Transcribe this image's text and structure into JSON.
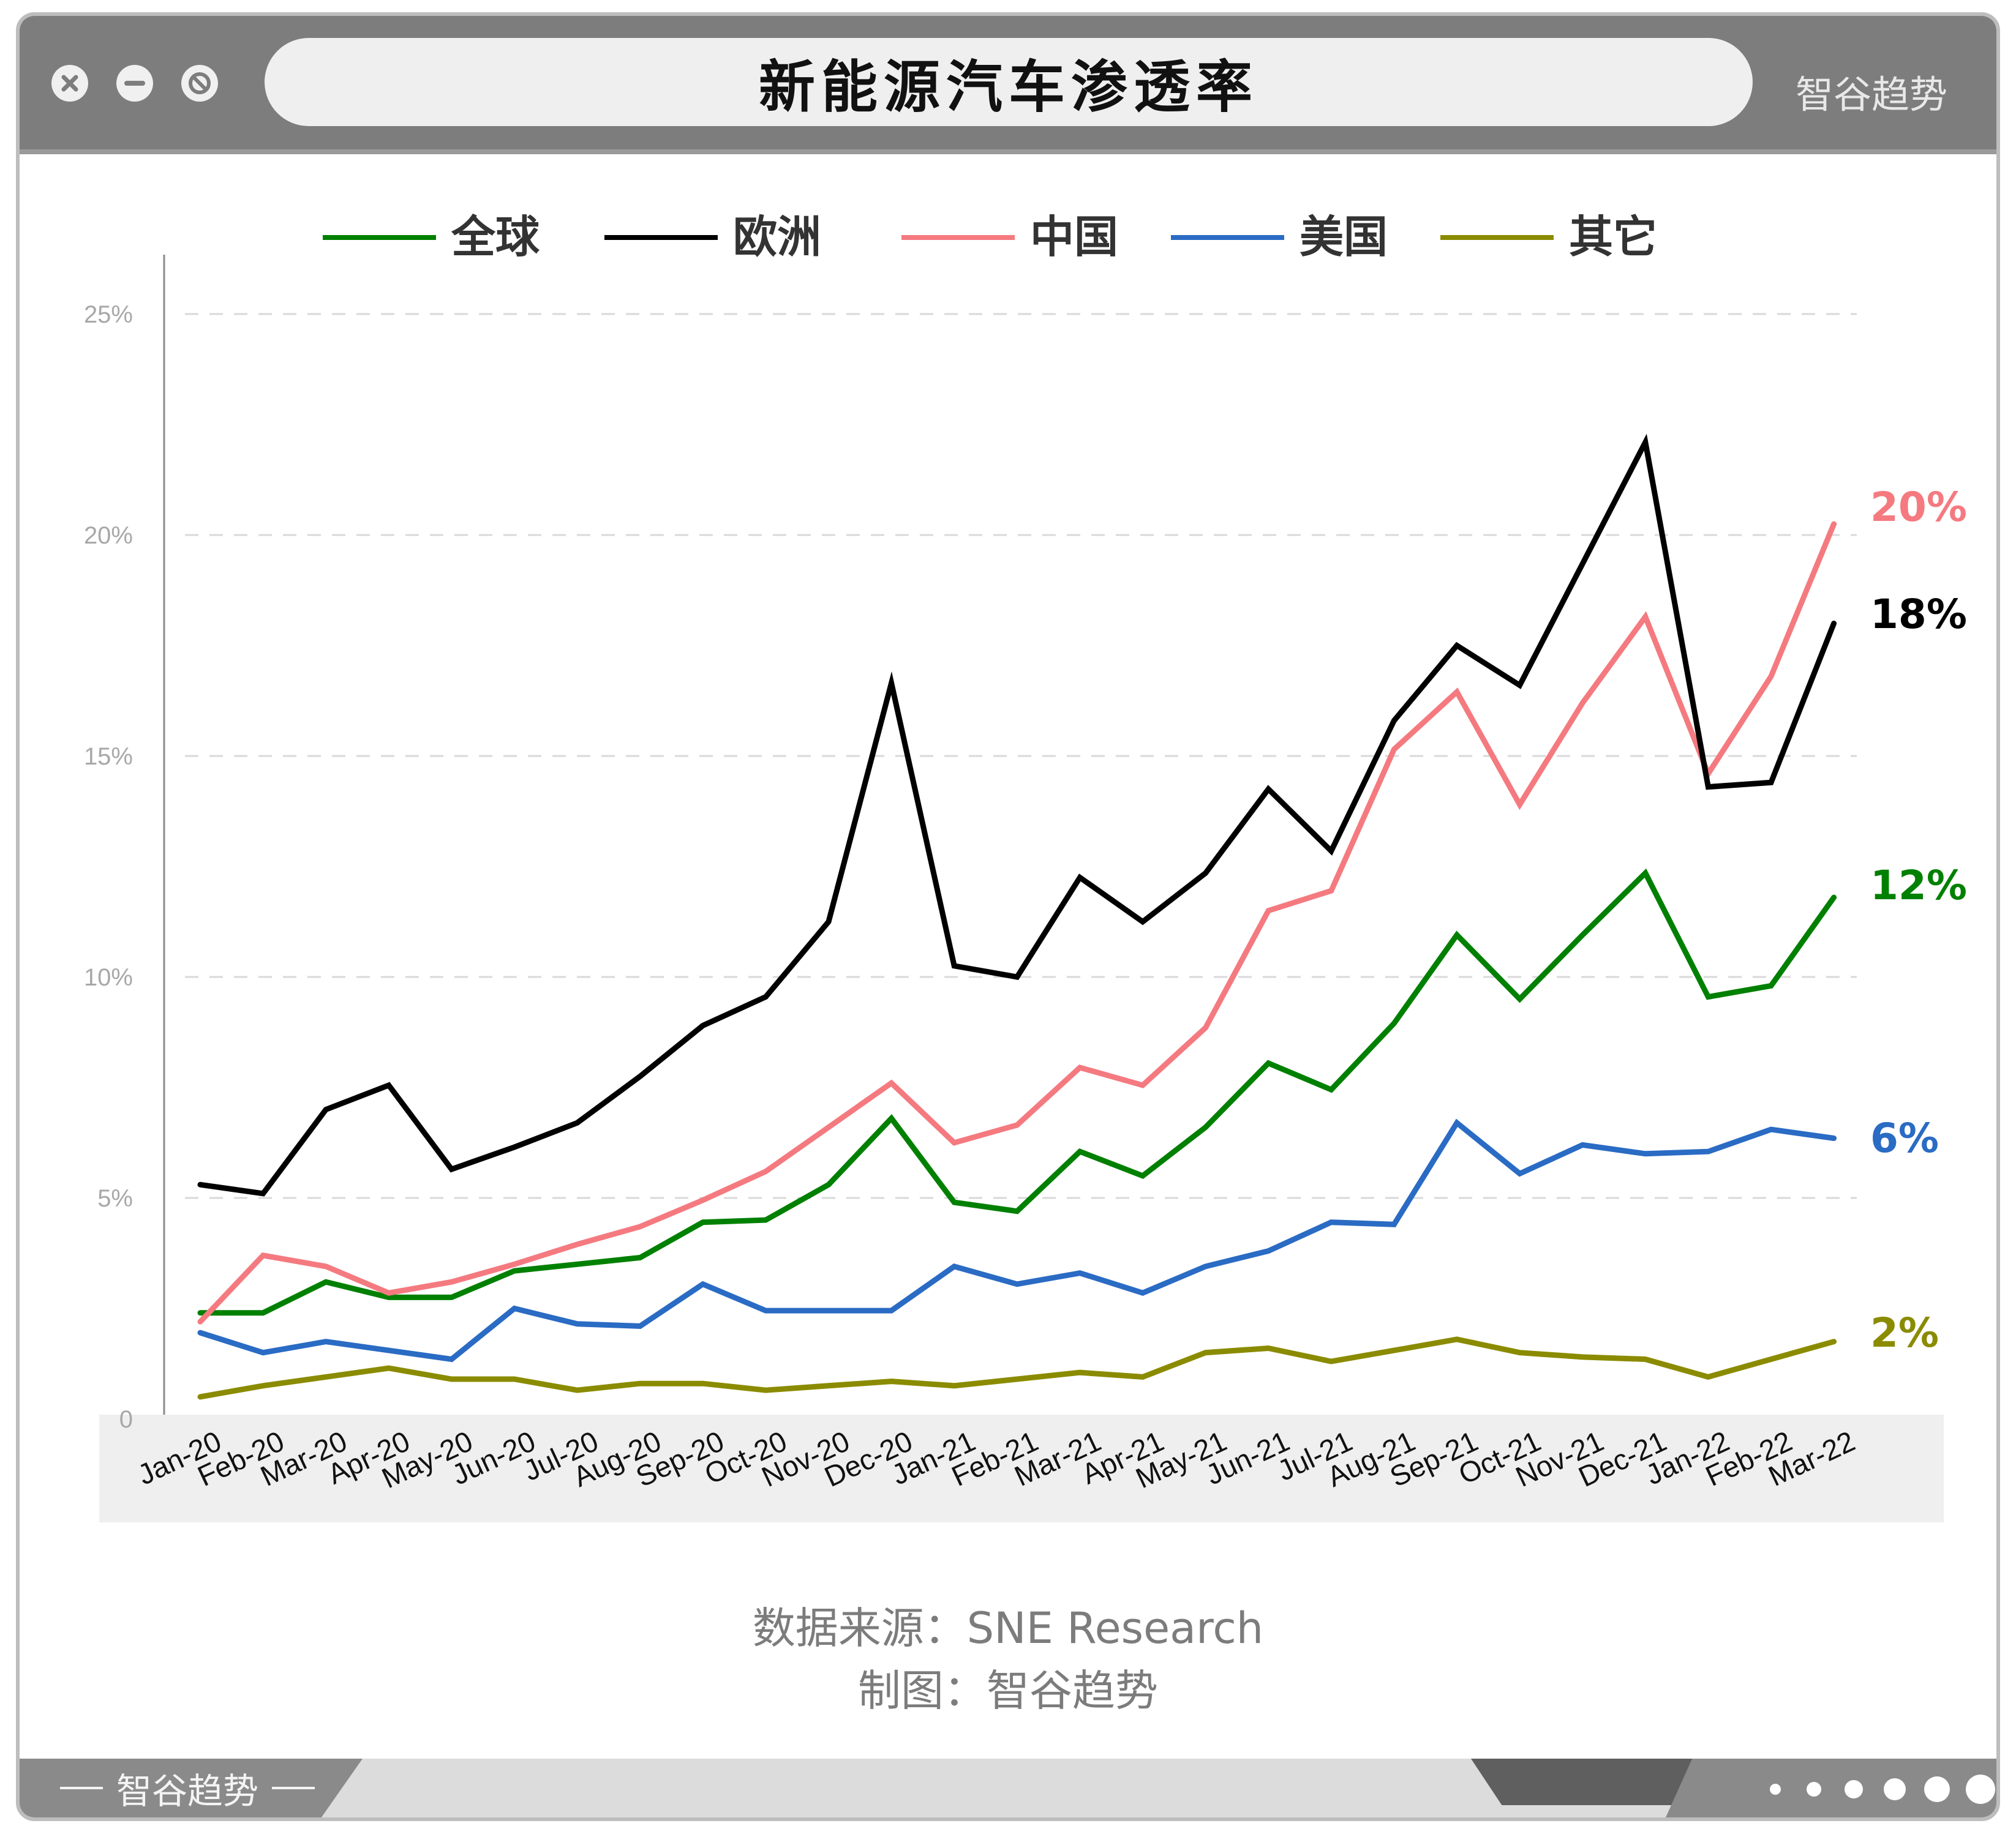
{
  "window": {
    "title": "新能源汽车渗透率",
    "brand": "智谷趋势",
    "bottom_brand": "智谷趋势"
  },
  "footer": {
    "source_line": "数据来源：SNE Research",
    "maker_line": "制图：智谷趋势"
  },
  "colors": {
    "global": "#008000",
    "europe": "#000000",
    "china": "#f47a80",
    "usa": "#2a6bc4",
    "other": "#8b8b00"
  },
  "chart_data": {
    "type": "line",
    "title": "新能源汽车渗透率",
    "xlabel": "",
    "ylabel": "",
    "ylim": [
      0,
      25
    ],
    "yticks": [
      "0",
      "5%",
      "10%",
      "15%",
      "20%",
      "25%"
    ],
    "ytick_values": [
      0,
      5,
      10,
      15,
      20,
      25
    ],
    "grid": "horizontal dashed",
    "legend": "top",
    "categories": [
      "Jan-20",
      "Feb-20",
      "Mar-20",
      "Apr-20",
      "May-20",
      "Jun-20",
      "Jul-20",
      "Aug-20",
      "Sep-20",
      "Oct-20",
      "Nov-20",
      "Dec-20",
      "Jan-21",
      "Feb-21",
      "Mar-21",
      "Apr-21",
      "May-21",
      "Jun-21",
      "Jul-21",
      "Aug-21",
      "Sep-21",
      "Oct-21",
      "Nov-21",
      "Dec-21",
      "Jan-22",
      "Feb-22",
      "Mar-22"
    ],
    "series": [
      {
        "name": "全球",
        "color": "#008000",
        "end_label": "12%",
        "values": [
          2.4,
          2.4,
          3.1,
          2.75,
          2.75,
          3.35,
          3.5,
          3.65,
          4.45,
          4.5,
          5.3,
          6.8,
          4.9,
          4.7,
          6.05,
          5.5,
          6.6,
          8.05,
          7.45,
          8.95,
          10.95,
          9.5,
          10.95,
          12.35,
          9.55,
          9.8,
          11.8
        ]
      },
      {
        "name": "欧洲",
        "color": "#000000",
        "end_label": "18%",
        "values": [
          5.3,
          5.1,
          7.0,
          7.55,
          5.65,
          6.15,
          6.7,
          7.75,
          8.9,
          9.55,
          11.25,
          16.65,
          10.25,
          10.0,
          12.25,
          11.25,
          12.35,
          14.25,
          12.85,
          15.8,
          17.5,
          16.6,
          19.35,
          22.1,
          14.3,
          14.4,
          18.0
        ]
      },
      {
        "name": "中国",
        "color": "#f47a80",
        "end_label": "20%",
        "values": [
          2.2,
          3.7,
          3.45,
          2.85,
          3.1,
          3.5,
          3.95,
          4.35,
          4.95,
          5.6,
          6.6,
          7.6,
          6.25,
          6.65,
          7.95,
          7.55,
          8.85,
          11.5,
          11.95,
          15.15,
          16.45,
          13.9,
          16.2,
          18.15,
          14.6,
          16.8,
          20.25
        ]
      },
      {
        "name": "美国",
        "color": "#2a6bc4",
        "end_label": "6%",
        "values": [
          1.95,
          1.5,
          1.75,
          1.55,
          1.35,
          2.5,
          2.15,
          2.1,
          3.05,
          2.45,
          2.45,
          2.45,
          3.45,
          3.05,
          3.3,
          2.85,
          3.45,
          3.8,
          4.45,
          4.4,
          6.7,
          5.55,
          6.2,
          6.0,
          6.05,
          6.55,
          6.35
        ]
      },
      {
        "name": "其它",
        "color": "#8b8b00",
        "end_label": "2%",
        "values": [
          0.5,
          0.75,
          0.95,
          1.15,
          0.9,
          0.9,
          0.65,
          0.8,
          0.8,
          0.65,
          0.75,
          0.85,
          0.75,
          0.9,
          1.05,
          0.95,
          1.5,
          1.6,
          1.3,
          1.55,
          1.8,
          1.5,
          1.4,
          1.35,
          0.95,
          1.35,
          1.75
        ]
      }
    ]
  }
}
